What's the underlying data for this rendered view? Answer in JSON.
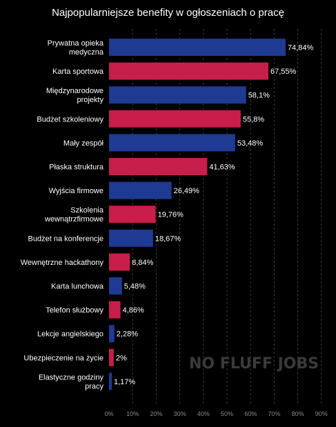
{
  "chart_data": {
    "type": "bar",
    "orientation": "horizontal",
    "title": "Najpopularniejsze benefity w ogłoszeniach o pracę",
    "categories": [
      "Prywatna opieka medyczna",
      "Karta sportowa",
      "Międzynarodowe projekty",
      "Budżet szkoleniowy",
      "Mały zespół",
      "Płaska struktura",
      "Wyjścia firmowe",
      "Szkolenia wewnątrzfirmowe",
      "Budżet na konferencje",
      "Wewnętrzne hackathony",
      "Karta lunchowa",
      "Telefon służbowy",
      "Lekcje angielskiego",
      "Ubezpieczenie na życie",
      "Elastyczne godziny pracy"
    ],
    "category_lines": [
      [
        "Prywatna opieka",
        "medyczna"
      ],
      [
        "Karta sportowa"
      ],
      [
        "Międzynarodowe",
        "projekty"
      ],
      [
        "Budżet szkoleniowy"
      ],
      [
        "Mały zespół"
      ],
      [
        "Płaska struktura"
      ],
      [
        "Wyjścia firmowe"
      ],
      [
        "Szkolenia",
        "wewnątrzfirmowe"
      ],
      [
        "Budżet na konferencje"
      ],
      [
        "Wewnętrzne hackathony"
      ],
      [
        "Karta lunchowa"
      ],
      [
        "Telefon służbowy"
      ],
      [
        "Lekcje angielskiego"
      ],
      [
        "Ubezpieczenie na życie"
      ],
      [
        "Elastyczne godziny",
        "pracy"
      ]
    ],
    "values": [
      74.84,
      67.55,
      58.1,
      55.8,
      53.48,
      41.63,
      26.49,
      19.76,
      18.67,
      8.84,
      5.48,
      4.86,
      2.28,
      2,
      1.17
    ],
    "value_labels": [
      "74,84%",
      "67,55%",
      "58,1%",
      "55,8%",
      "53,48%",
      "41,63%",
      "26,49%",
      "19,76%",
      "18,67%",
      "8,84%",
      "5,48%",
      "4,86%",
      "2,28%",
      "2%",
      "1,17%"
    ],
    "xlim": [
      0,
      90
    ],
    "x_ticks": [
      0,
      10,
      20,
      30,
      40,
      50,
      60,
      70,
      80,
      90
    ],
    "x_tick_labels": [
      "0%",
      "10%",
      "20%",
      "30%",
      "40%",
      "50%",
      "60%",
      "70%",
      "80%",
      "90%"
    ],
    "grid": "vertical dashed",
    "colors": {
      "primary": "#1f3a93",
      "secondary": "#c81e4b",
      "background": "#000000",
      "grid": "#3a3a3a"
    }
  },
  "watermark": "NO FLUFF JOBS"
}
